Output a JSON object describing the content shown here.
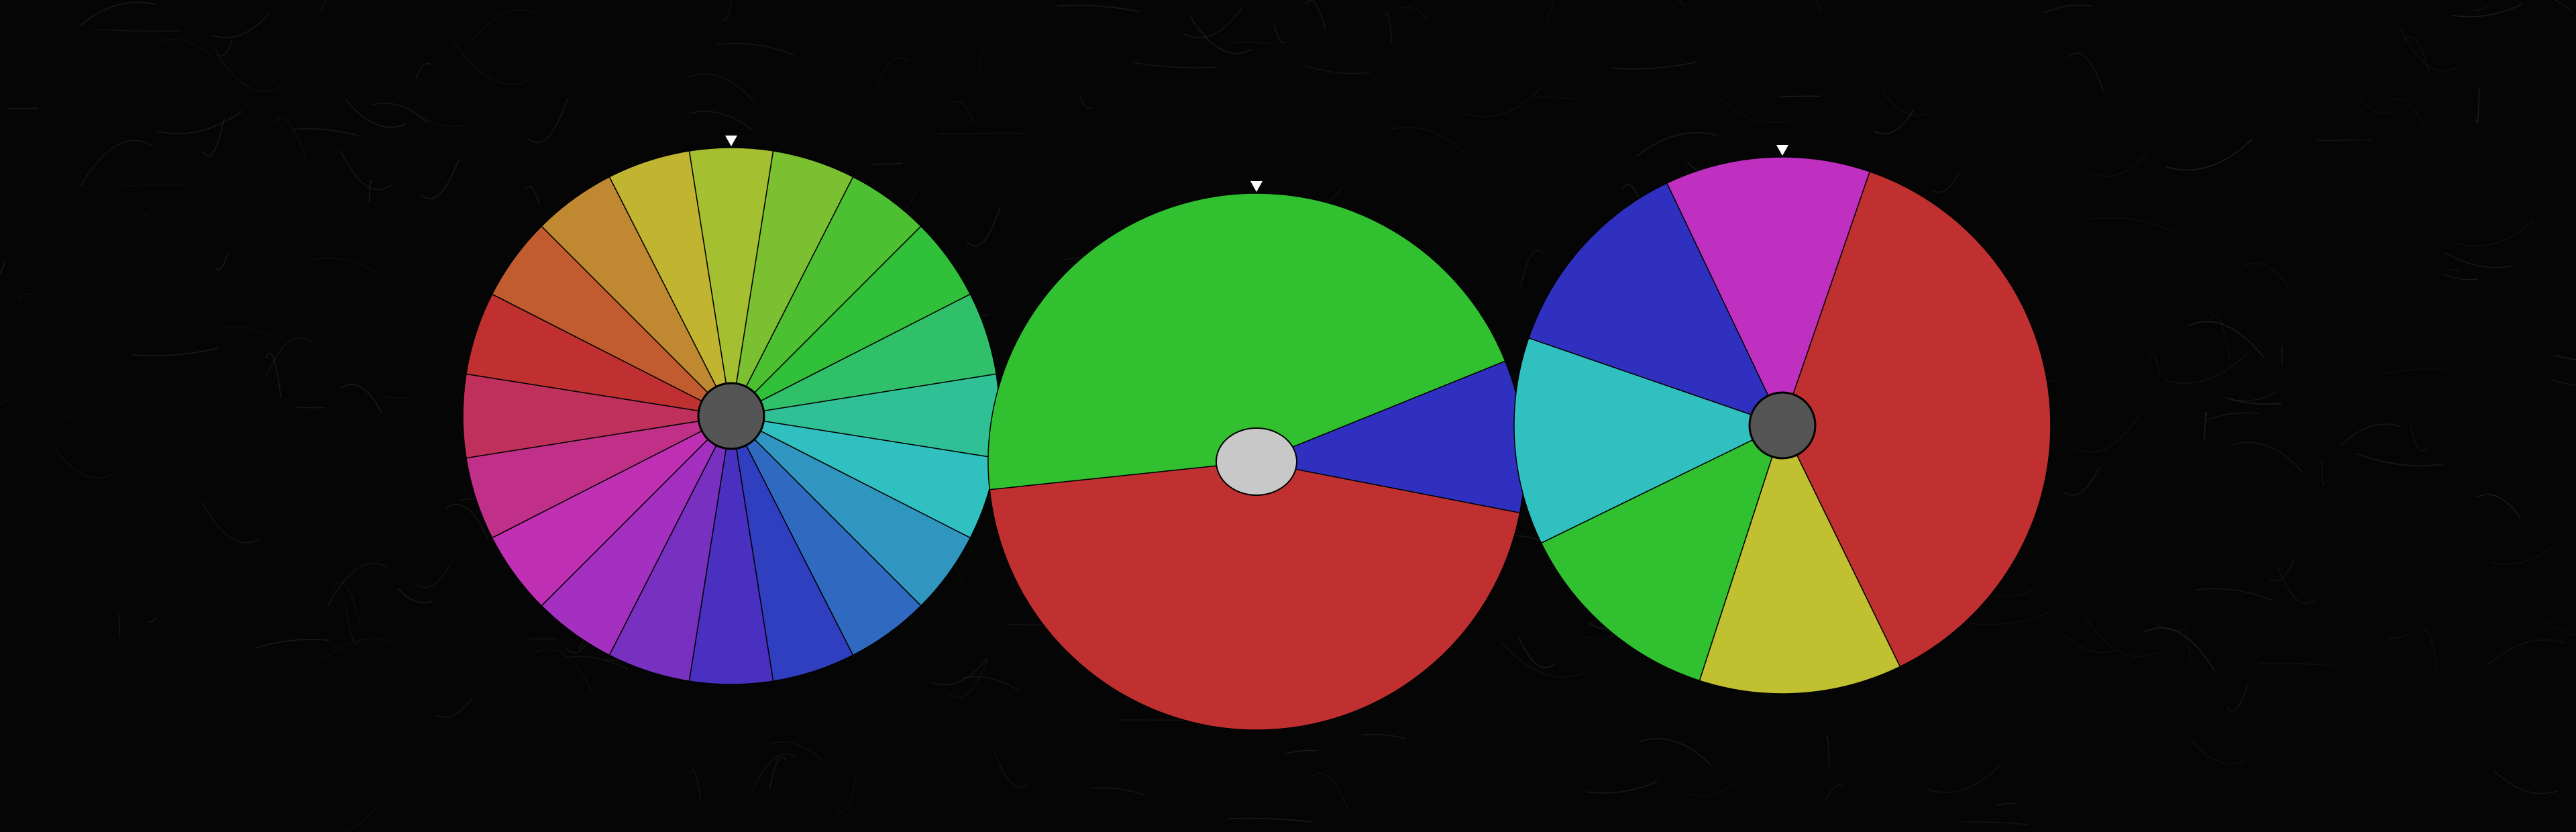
{
  "background": {
    "color": "#050505",
    "texture_color": "#3a3a3a"
  },
  "pointer_color": "#ffffff",
  "wheels": [
    {
      "name": "wheel-1",
      "hub_color": "#555555",
      "hub_shape": "circle",
      "segments_equal": 20,
      "segments": [
        {
          "color": "#a4c030",
          "start": -9,
          "end": 9
        },
        {
          "color": "#7ac030",
          "start": 9,
          "end": 27
        },
        {
          "color": "#4cc030",
          "start": 27,
          "end": 45
        },
        {
          "color": "#30c03a",
          "start": 45,
          "end": 63
        },
        {
          "color": "#30c06a",
          "start": 63,
          "end": 81
        },
        {
          "color": "#30c096",
          "start": 81,
          "end": 99
        },
        {
          "color": "#30c0c0",
          "start": 99,
          "end": 117
        },
        {
          "color": "#3096c0",
          "start": 117,
          "end": 135
        },
        {
          "color": "#306ac0",
          "start": 135,
          "end": 153
        },
        {
          "color": "#303ec0",
          "start": 153,
          "end": 171
        },
        {
          "color": "#4a30c0",
          "start": 171,
          "end": 189
        },
        {
          "color": "#7830c0",
          "start": 189,
          "end": 207
        },
        {
          "color": "#a430c0",
          "start": 207,
          "end": 225
        },
        {
          "color": "#c030b4",
          "start": 225,
          "end": 243
        },
        {
          "color": "#c03088",
          "start": 243,
          "end": 261
        },
        {
          "color": "#c0305c",
          "start": 261,
          "end": 279
        },
        {
          "color": "#c03030",
          "start": 279,
          "end": 297
        },
        {
          "color": "#c05c30",
          "start": 297,
          "end": 315
        },
        {
          "color": "#c08830",
          "start": 315,
          "end": 333
        },
        {
          "color": "#c0b430",
          "start": 333,
          "end": 351
        }
      ]
    },
    {
      "name": "wheel-2",
      "hub_color": "#c8c8c8",
      "hub_shape": "ellipse",
      "segments": [
        {
          "color": "#30c030",
          "start": -96,
          "end": 68
        },
        {
          "color": "#3030c0",
          "start": 68,
          "end": 101
        },
        {
          "color": "#c03030",
          "start": 101,
          "end": 264
        }
      ]
    },
    {
      "name": "wheel-3",
      "hub_color": "#555555",
      "hub_shape": "circle",
      "segments": [
        {
          "color": "#c030c0",
          "start": -25.5,
          "end": 19
        },
        {
          "color": "#c03030",
          "start": 19,
          "end": 154
        },
        {
          "color": "#c0c030",
          "start": 154,
          "end": 198
        },
        {
          "color": "#30c030",
          "start": 198,
          "end": 244
        },
        {
          "color": "#30c0c0",
          "start": 244,
          "end": 289
        },
        {
          "color": "#3030c0",
          "start": 289,
          "end": 334.5
        }
      ]
    }
  ]
}
